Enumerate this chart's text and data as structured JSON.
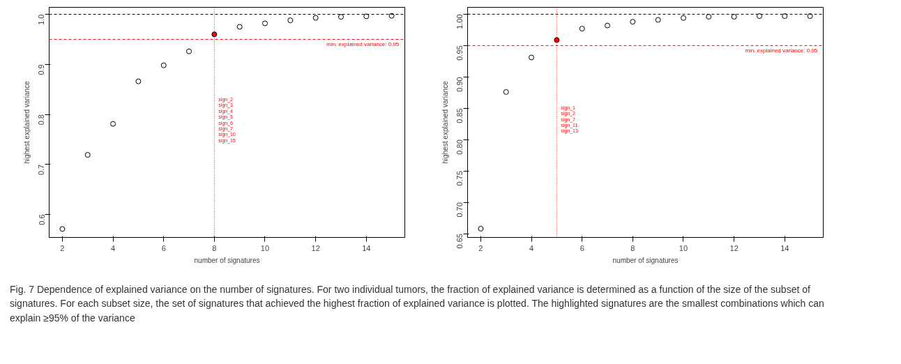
{
  "chart_data": [
    {
      "type": "scatter",
      "xlabel": "number of signatures",
      "ylabel": "highest explained variance",
      "x": [
        2,
        3,
        4,
        5,
        6,
        7,
        8,
        9,
        10,
        11,
        12,
        13,
        14,
        15
      ],
      "series": [
        {
          "color": "#000000",
          "values": [
            0.571,
            0.719,
            0.781,
            0.866,
            0.898,
            0.926,
            null,
            0.975,
            0.982,
            0.988,
            0.993,
            0.995,
            0.996,
            0.997
          ]
        },
        {
          "color": "#ff0000",
          "values": [
            null,
            null,
            null,
            null,
            null,
            null,
            0.96,
            null,
            null,
            null,
            null,
            null,
            null,
            null
          ]
        }
      ],
      "marker": "circle",
      "grid": false,
      "xlim": [
        1.48,
        15.52
      ],
      "xticks": [
        2,
        4,
        6,
        8,
        10,
        12,
        14
      ],
      "ylim": [
        0.554,
        1.014
      ],
      "yticks": [
        0.6,
        0.7,
        0.8,
        0.9,
        {
          "value": 1.0,
          "label": "1.0"
        }
      ],
      "ref_lines": [
        {
          "axis": "y",
          "value": 1.0,
          "color": "#000000",
          "line_style": "dashed"
        },
        {
          "axis": "y",
          "value": 0.95,
          "label": "min. explained variance:  0.95",
          "color": "#ff0000",
          "line_style": "dashed"
        },
        {
          "axis": "x",
          "value": 8,
          "color": "#ff0000",
          "line_style": "dotted"
        }
      ],
      "annotations": [
        {
          "text": "sign_2\nsign_3\nsign_4\nsign_5\nsign_6\nsign_7\nsign_10\nsign_15",
          "x": 8,
          "y": 0.835
        },
        "Fig. 7 Dependence of explained variance on the number of signatures. For two individual tumors, the fraction of explained variance is determined as a function of the size of the subset of signatures. For each subset size, the set of signatures that achieved the highest fraction of explained variance is plotted. The highlighted signatures are the smallest combinations which can explain ≥95% of the variance"
      ]
    },
    {
      "type": "scatter",
      "xlabel": "number of signatures",
      "ylabel": "highest explained variance",
      "x": [
        2,
        3,
        4,
        5,
        6,
        7,
        8,
        9,
        10,
        11,
        12,
        13,
        14,
        15
      ],
      "series": [
        {
          "color": "#000000",
          "values": [
            0.658,
            0.876,
            0.931,
            null,
            0.977,
            0.982,
            0.988,
            0.991,
            0.994,
            0.996,
            0.996,
            0.997,
            0.997,
            0.997
          ]
        },
        {
          "color": "#ff0000",
          "values": [
            null,
            null,
            null,
            0.959,
            null,
            null,
            null,
            null,
            null,
            null,
            null,
            null,
            null,
            null
          ]
        }
      ],
      "marker": "circle",
      "grid": false,
      "xlim": [
        1.48,
        15.52
      ],
      "xticks": [
        2,
        4,
        6,
        8,
        10,
        12,
        14
      ],
      "ylim": [
        0.644,
        1.011
      ],
      "yticks": [
        {
          "value": 0.65,
          "label": "0.65"
        },
        {
          "value": 0.7,
          "label": "0.70"
        },
        {
          "value": 0.75,
          "label": "0.75"
        },
        {
          "value": 0.8,
          "label": "0.80"
        },
        {
          "value": 0.85,
          "label": "0.85"
        },
        {
          "value": 0.9,
          "label": "0.90"
        },
        {
          "value": 0.95,
          "label": "0.95"
        },
        {
          "value": 1.0,
          "label": "1.00"
        }
      ],
      "ref_lines": [
        {
          "axis": "y",
          "value": 1.0,
          "color": "#000000",
          "line_style": "dashed"
        },
        {
          "axis": "y",
          "value": 0.95,
          "label": "min. explained variance:  0.95",
          "color": "#ff0000",
          "line_style": "dashed"
        },
        {
          "axis": "x",
          "value": 5,
          "color": "#ff0000",
          "line_style": "dotted"
        }
      ],
      "annotations": [
        {
          "text": "sign_1\nsign_2\nsign_7\nsign_11\nsign_13",
          "x": 5,
          "y": 0.855
        }
      ]
    }
  ]
}
